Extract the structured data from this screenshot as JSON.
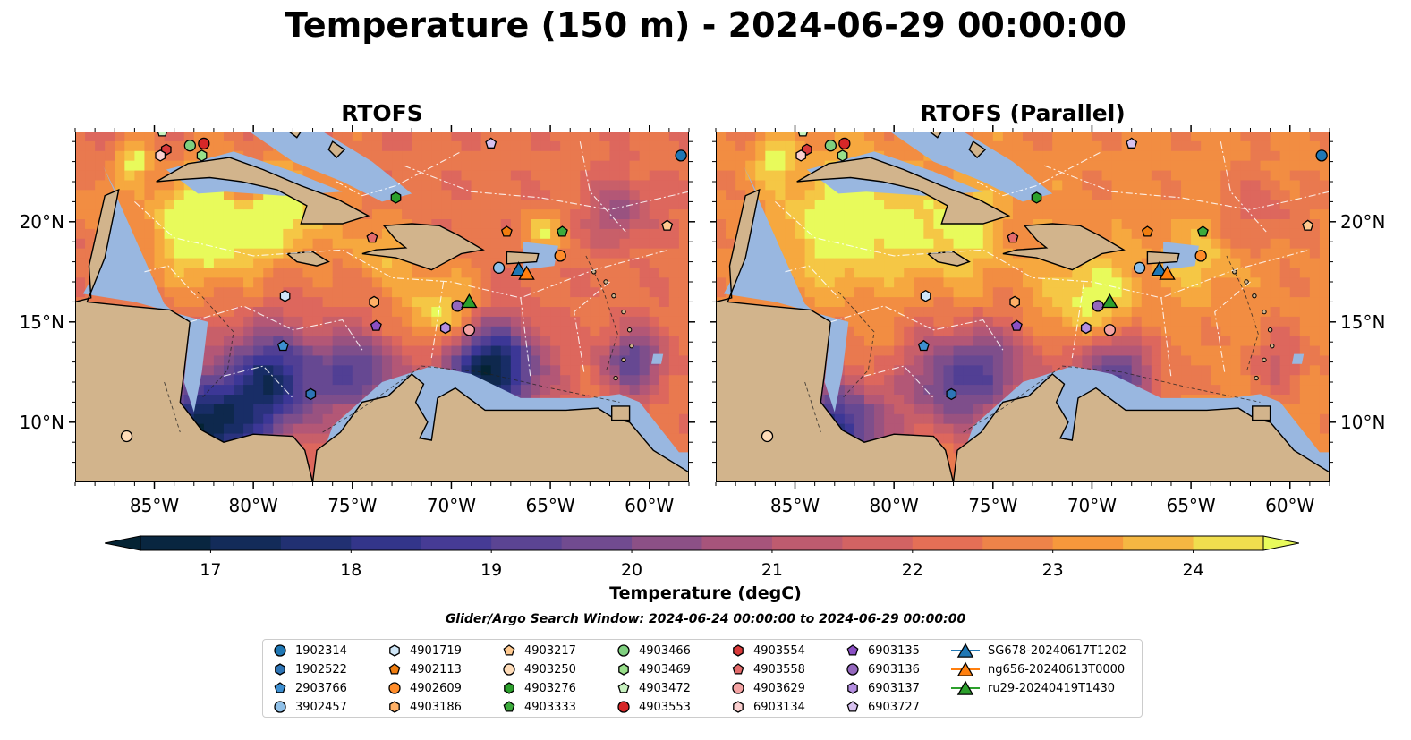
{
  "title": "Temperature (150 m) - 2024-06-29 00:00:00",
  "panels": [
    {
      "title": "RTOFS"
    },
    {
      "title": "RTOFS (Parallel)"
    }
  ],
  "map": {
    "lon_range": [
      -89,
      -58
    ],
    "lat_range": [
      7,
      24.5
    ],
    "lon_ticks": [
      "85°W",
      "80°W",
      "75°W",
      "70°W",
      "65°W",
      "60°W"
    ],
    "lat_ticks": [
      "20°N",
      "15°N",
      "10°N"
    ],
    "land_color": "#d2b48c",
    "shelf_color": "#99b7e0",
    "coastline_color": "#000000"
  },
  "colorbar": {
    "title": "Temperature (degC)",
    "min": 16.5,
    "max": 24.5,
    "step": 0.5,
    "extend": "both",
    "colormap": "thermal",
    "ticks": [
      "17",
      "18",
      "19",
      "20",
      "21",
      "22",
      "23",
      "24"
    ]
  },
  "search_window": "Glider/Argo Search Window: 2024-06-24 00:00:00 to 2024-06-29 00:00:00",
  "legend": {
    "columns": [
      [
        {
          "label": "1902314",
          "marker": "circle",
          "color": "#1f77b4"
        },
        {
          "label": "1902522",
          "marker": "hexagon",
          "color": "#2e75b6"
        },
        {
          "label": "2903766",
          "marker": "pentagon",
          "color": "#3d8fd1"
        },
        {
          "label": "3902457",
          "marker": "circle",
          "color": "#8fc0e8"
        }
      ],
      [
        {
          "label": "4901719",
          "marker": "hexagon",
          "color": "#cfe6f7"
        },
        {
          "label": "4902113",
          "marker": "pentagon",
          "color": "#f07d0f"
        },
        {
          "label": "4902609",
          "marker": "circle",
          "color": "#ff8c2a"
        },
        {
          "label": "4903186",
          "marker": "hexagon",
          "color": "#ffb066"
        }
      ],
      [
        {
          "label": "4903217",
          "marker": "pentagon",
          "color": "#ffc98f"
        },
        {
          "label": "4903250",
          "marker": "circle",
          "color": "#ffdcb8"
        },
        {
          "label": "4903276",
          "marker": "hexagon",
          "color": "#2ca02c"
        },
        {
          "label": "4903333",
          "marker": "pentagon",
          "color": "#3cab3c"
        }
      ],
      [
        {
          "label": "4903466",
          "marker": "circle",
          "color": "#7fd07f"
        },
        {
          "label": "4903469",
          "marker": "hexagon",
          "color": "#98df8a"
        },
        {
          "label": "4903472",
          "marker": "pentagon",
          "color": "#c8f2c0"
        },
        {
          "label": "4903553",
          "marker": "circle",
          "color": "#d62728"
        }
      ],
      [
        {
          "label": "4903554",
          "marker": "hexagon",
          "color": "#d93a3a"
        },
        {
          "label": "4903558",
          "marker": "pentagon",
          "color": "#e46b6b"
        },
        {
          "label": "4903629",
          "marker": "circle",
          "color": "#f4a3a3"
        },
        {
          "label": "6903134",
          "marker": "hexagon",
          "color": "#fbd0d0"
        }
      ],
      [
        {
          "label": "6903135",
          "marker": "pentagon",
          "color": "#8a4fc4"
        },
        {
          "label": "6903136",
          "marker": "circle",
          "color": "#9467bd"
        },
        {
          "label": "6903137",
          "marker": "hexagon",
          "color": "#b48ee0"
        },
        {
          "label": "6903727",
          "marker": "pentagon",
          "color": "#d8c2f0"
        }
      ],
      [
        {
          "label": "SG678-20240617T1202",
          "marker": "triangle",
          "color": "#1f77b4"
        },
        {
          "label": "ng656-20240613T0000",
          "marker": "triangle",
          "color": "#ff7f0e"
        },
        {
          "label": "ru29-20240419T1430",
          "marker": "triangle",
          "color": "#2ca02c"
        }
      ]
    ]
  },
  "markers": [
    {
      "name": "1902314",
      "lon": -58.4,
      "lat": 23.3
    },
    {
      "name": "1902522",
      "lon": -77.1,
      "lat": 11.4
    },
    {
      "name": "2903766",
      "lon": -78.5,
      "lat": 13.8
    },
    {
      "name": "3902457",
      "lon": -67.6,
      "lat": 17.7
    },
    {
      "name": "4901719",
      "lon": -78.4,
      "lat": 16.3
    },
    {
      "name": "4902113",
      "lon": -67.2,
      "lat": 19.5
    },
    {
      "name": "4902609",
      "lon": -64.5,
      "lat": 18.3
    },
    {
      "name": "4903186",
      "lon": -73.9,
      "lat": 16.0
    },
    {
      "name": "4903217",
      "lon": -59.1,
      "lat": 19.8
    },
    {
      "name": "4903250",
      "lon": -86.4,
      "lat": 9.3
    },
    {
      "name": "4903276",
      "lon": -72.8,
      "lat": 21.2
    },
    {
      "name": "4903333",
      "lon": -64.4,
      "lat": 19.5
    },
    {
      "name": "4903466",
      "lon": -83.2,
      "lat": 23.8
    },
    {
      "name": "4903469",
      "lon": -82.6,
      "lat": 23.3
    },
    {
      "name": "4903472",
      "lon": -84.6,
      "lat": 24.5
    },
    {
      "name": "4903553",
      "lon": -82.5,
      "lat": 23.9
    },
    {
      "name": "4903554",
      "lon": -84.4,
      "lat": 23.6
    },
    {
      "name": "4903558",
      "lon": -74.0,
      "lat": 19.2
    },
    {
      "name": "4903629",
      "lon": -69.1,
      "lat": 14.6
    },
    {
      "name": "6903134",
      "lon": -84.7,
      "lat": 23.3
    },
    {
      "name": "6903135",
      "lon": -73.8,
      "lat": 14.8
    },
    {
      "name": "6903136",
      "lon": -69.7,
      "lat": 15.8
    },
    {
      "name": "6903137",
      "lon": -70.3,
      "lat": 14.7
    },
    {
      "name": "6903727",
      "lon": -68.0,
      "lat": 23.9
    },
    {
      "name": "SG678-20240617T1202",
      "lon": -66.6,
      "lat": 17.6
    },
    {
      "name": "ng656-20240613T0000",
      "lon": -66.2,
      "lat": 17.4
    },
    {
      "name": "ru29-20240419T1430",
      "lon": -69.1,
      "lat": 16.0
    }
  ],
  "gliders": [
    {
      "name": "SG678-20240617T1202",
      "lon": -66.6,
      "lat": 17.6
    },
    {
      "name": "ng656-20240613T0000",
      "lon": -66.2,
      "lat": 17.4
    },
    {
      "name": "ru29-20240419T1430",
      "lon": -69.1,
      "lat": 16.0
    }
  ]
}
